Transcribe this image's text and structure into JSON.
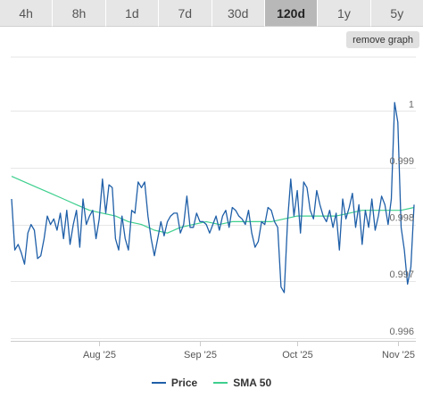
{
  "tabs": [
    {
      "label": "4h"
    },
    {
      "label": "8h"
    },
    {
      "label": "1d"
    },
    {
      "label": "7d"
    },
    {
      "label": "30d"
    },
    {
      "label": "120d",
      "active": true
    },
    {
      "label": "1y"
    },
    {
      "label": "5y"
    }
  ],
  "remove_graph_label": "remove graph",
  "colors": {
    "price": "#1f5fa8",
    "sma": "#3ecf8e",
    "grid": "#e6e6e6",
    "axis": "#cccccc"
  },
  "chart_data": {
    "type": "line",
    "x_ticks": [
      {
        "label": "Aug '25",
        "day": 27
      },
      {
        "label": "Sep '25",
        "day": 58
      },
      {
        "label": "Oct '25",
        "day": 88
      },
      {
        "label": "Nov '25",
        "day": 119
      }
    ],
    "y_ticks": [
      1.0,
      0.999,
      0.998,
      0.997,
      0.996
    ],
    "y_tick_labels": [
      "1",
      "0.999",
      "0.998",
      "0.997",
      "0.996"
    ],
    "ylim": [
      0.99595,
      1.00095
    ],
    "xlim": [
      0,
      122
    ],
    "series": [
      {
        "name": "Price",
        "points": [
          [
            0,
            0.99845
          ],
          [
            1,
            0.99755
          ],
          [
            2,
            0.99765
          ],
          [
            3,
            0.9975
          ],
          [
            4,
            0.9973
          ],
          [
            5,
            0.99785
          ],
          [
            6,
            0.998
          ],
          [
            7,
            0.9979
          ],
          [
            8,
            0.9974
          ],
          [
            9,
            0.99745
          ],
          [
            10,
            0.99775
          ],
          [
            11,
            0.99815
          ],
          [
            12,
            0.998
          ],
          [
            13,
            0.9981
          ],
          [
            14,
            0.9979
          ],
          [
            15,
            0.9982
          ],
          [
            16,
            0.99775
          ],
          [
            17,
            0.99825
          ],
          [
            18,
            0.99765
          ],
          [
            19,
            0.998
          ],
          [
            20,
            0.99825
          ],
          [
            21,
            0.9976
          ],
          [
            22,
            0.99845
          ],
          [
            23,
            0.998
          ],
          [
            24,
            0.99815
          ],
          [
            25,
            0.99825
          ],
          [
            26,
            0.99775
          ],
          [
            27,
            0.9981
          ],
          [
            28,
            0.9988
          ],
          [
            29,
            0.9982
          ],
          [
            30,
            0.9987
          ],
          [
            31,
            0.99865
          ],
          [
            32,
            0.99775
          ],
          [
            33,
            0.99755
          ],
          [
            34,
            0.99815
          ],
          [
            35,
            0.99775
          ],
          [
            36,
            0.99755
          ],
          [
            37,
            0.99825
          ],
          [
            38,
            0.9982
          ],
          [
            39,
            0.99875
          ],
          [
            40,
            0.99865
          ],
          [
            41,
            0.99875
          ],
          [
            42,
            0.99815
          ],
          [
            43,
            0.99775
          ],
          [
            44,
            0.99745
          ],
          [
            45,
            0.99775
          ],
          [
            46,
            0.99805
          ],
          [
            47,
            0.9978
          ],
          [
            48,
            0.99805
          ],
          [
            49,
            0.99815
          ],
          [
            50,
            0.9982
          ],
          [
            51,
            0.9982
          ],
          [
            52,
            0.99785
          ],
          [
            53,
            0.998
          ],
          [
            54,
            0.9985
          ],
          [
            55,
            0.99795
          ],
          [
            56,
            0.99795
          ],
          [
            57,
            0.9982
          ],
          [
            58,
            0.99805
          ],
          [
            59,
            0.99805
          ],
          [
            60,
            0.998
          ],
          [
            61,
            0.99785
          ],
          [
            62,
            0.998
          ],
          [
            63,
            0.99815
          ],
          [
            64,
            0.9979
          ],
          [
            65,
            0.99815
          ],
          [
            66,
            0.99825
          ],
          [
            67,
            0.99795
          ],
          [
            68,
            0.9983
          ],
          [
            69,
            0.99825
          ],
          [
            70,
            0.99815
          ],
          [
            71,
            0.9981
          ],
          [
            72,
            0.998
          ],
          [
            73,
            0.99825
          ],
          [
            74,
            0.99785
          ],
          [
            75,
            0.9976
          ],
          [
            76,
            0.9977
          ],
          [
            77,
            0.99805
          ],
          [
            78,
            0.998
          ],
          [
            79,
            0.9983
          ],
          [
            80,
            0.99825
          ],
          [
            81,
            0.99805
          ],
          [
            82,
            0.99795
          ],
          [
            83,
            0.9969
          ],
          [
            84,
            0.9968
          ],
          [
            85,
            0.99805
          ],
          [
            86,
            0.9988
          ],
          [
            87,
            0.99815
          ],
          [
            88,
            0.9986
          ],
          [
            89,
            0.99785
          ],
          [
            90,
            0.99875
          ],
          [
            91,
            0.99865
          ],
          [
            92,
            0.99825
          ],
          [
            93,
            0.9981
          ],
          [
            94,
            0.9986
          ],
          [
            95,
            0.99835
          ],
          [
            96,
            0.99815
          ],
          [
            97,
            0.99805
          ],
          [
            98,
            0.99825
          ],
          [
            99,
            0.99795
          ],
          [
            100,
            0.9982
          ],
          [
            101,
            0.99755
          ],
          [
            102,
            0.99845
          ],
          [
            103,
            0.9981
          ],
          [
            104,
            0.9983
          ],
          [
            105,
            0.99855
          ],
          [
            106,
            0.99795
          ],
          [
            107,
            0.99835
          ],
          [
            108,
            0.99765
          ],
          [
            109,
            0.99825
          ],
          [
            110,
            0.99795
          ],
          [
            111,
            0.99845
          ],
          [
            112,
            0.9979
          ],
          [
            113,
            0.99815
          ],
          [
            114,
            0.9985
          ],
          [
            115,
            0.99835
          ],
          [
            116,
            0.998
          ],
          [
            117,
            0.99845
          ],
          [
            118,
            1.00015
          ],
          [
            119,
            0.9998
          ],
          [
            120,
            0.99795
          ],
          [
            121,
            0.99755
          ],
          [
            122,
            0.99695
          ],
          [
            123,
            0.99725
          ],
          [
            124,
            0.99835
          ]
        ]
      },
      {
        "name": "SMA 50",
        "points": [
          [
            0,
            0.99885
          ],
          [
            4,
            0.99875
          ],
          [
            8,
            0.99865
          ],
          [
            12,
            0.99855
          ],
          [
            16,
            0.99845
          ],
          [
            20,
            0.99835
          ],
          [
            24,
            0.99825
          ],
          [
            28,
            0.9982
          ],
          [
            32,
            0.99815
          ],
          [
            36,
            0.99805
          ],
          [
            40,
            0.998
          ],
          [
            44,
            0.9979
          ],
          [
            48,
            0.99785
          ],
          [
            52,
            0.99795
          ],
          [
            56,
            0.998
          ],
          [
            60,
            0.99805
          ],
          [
            64,
            0.998
          ],
          [
            68,
            0.99805
          ],
          [
            72,
            0.99805
          ],
          [
            76,
            0.99805
          ],
          [
            80,
            0.99805
          ],
          [
            84,
            0.9981
          ],
          [
            88,
            0.99815
          ],
          [
            92,
            0.99815
          ],
          [
            96,
            0.99815
          ],
          [
            100,
            0.99815
          ],
          [
            104,
            0.9982
          ],
          [
            108,
            0.99825
          ],
          [
            112,
            0.99825
          ],
          [
            116,
            0.99825
          ],
          [
            120,
            0.99825
          ],
          [
            124,
            0.9983
          ]
        ]
      }
    ],
    "legend_position": "bottom"
  }
}
